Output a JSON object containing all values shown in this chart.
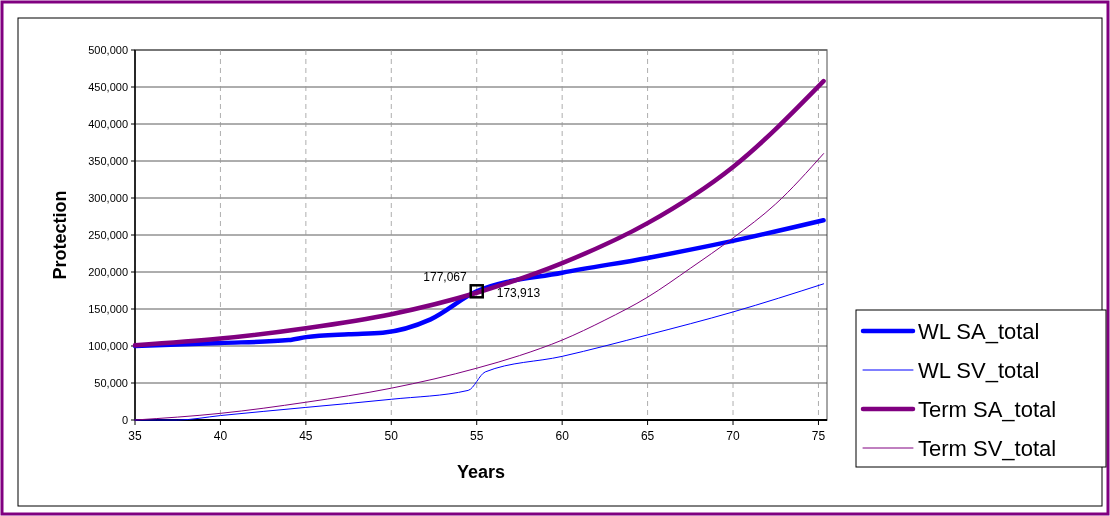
{
  "chart_data": {
    "type": "line",
    "xlabel": "Years",
    "ylabel": "Protection",
    "xlim": [
      35,
      75.5
    ],
    "xticks": [
      35,
      40,
      45,
      50,
      55,
      60,
      65,
      70,
      75
    ],
    "ylim": [
      0,
      500000
    ],
    "yticks": [
      {
        "value": 0,
        "label": "0"
      },
      {
        "value": 50000,
        "label": "50,000"
      },
      {
        "value": 100000,
        "label": "100,000"
      },
      {
        "value": 150000,
        "label": "150,000"
      },
      {
        "value": 200000,
        "label": "200,000"
      },
      {
        "value": 250000,
        "label": "250,000"
      },
      {
        "value": 300000,
        "label": "300,000"
      },
      {
        "value": 350000,
        "label": "350,000"
      },
      {
        "value": 400000,
        "label": "400,000"
      },
      {
        "value": 450000,
        "label": "450,000"
      },
      {
        "value": 500000,
        "label": "500,000"
      }
    ],
    "grid": true,
    "legend": "right",
    "series": [
      {
        "name": "WL SA_total",
        "color": "#0000ff",
        "x": [
          35,
          40,
          44,
          45,
          47.5,
          49.5,
          52.3,
          55,
          60,
          65,
          70,
          75.3
        ],
        "values": [
          100000,
          104000,
          108000,
          112000,
          116000,
          118000,
          136000,
          173913,
          199000,
          219000,
          242000,
          270000
        ]
      },
      {
        "name": "WL SV_total",
        "color": "#0000ff",
        "x": [
          35,
          37.5,
          40,
          45,
          50,
          54.5,
          55.5,
          60,
          65,
          70,
          75.3
        ],
        "values": [
          0,
          0,
          6000,
          17000,
          28000,
          40000,
          65000,
          86000,
          115000,
          146000,
          184000
        ]
      },
      {
        "name": "Term SA_total",
        "color": "#800080",
        "x": [
          35,
          40,
          45,
          50,
          55,
          60,
          65,
          70,
          75.3
        ],
        "values": [
          101000,
          110000,
          124000,
          143000,
          172000,
          212000,
          266000,
          342000,
          458000
        ]
      },
      {
        "name": "Term SV_total",
        "color": "#800080",
        "x": [
          35,
          40,
          45,
          50,
          55,
          57.5,
          60,
          62.5,
          65,
          67.5,
          70,
          72.5,
          75.3
        ],
        "values": [
          0,
          9000,
          24000,
          43000,
          70000,
          87000,
          108000,
          135000,
          166000,
          205000,
          246000,
          292000,
          360000
        ]
      }
    ],
    "annotations": [
      {
        "text": "177,067",
        "x": 55,
        "y": 177067
      },
      {
        "text": "173,913",
        "x": 55,
        "y": 173913
      }
    ]
  }
}
